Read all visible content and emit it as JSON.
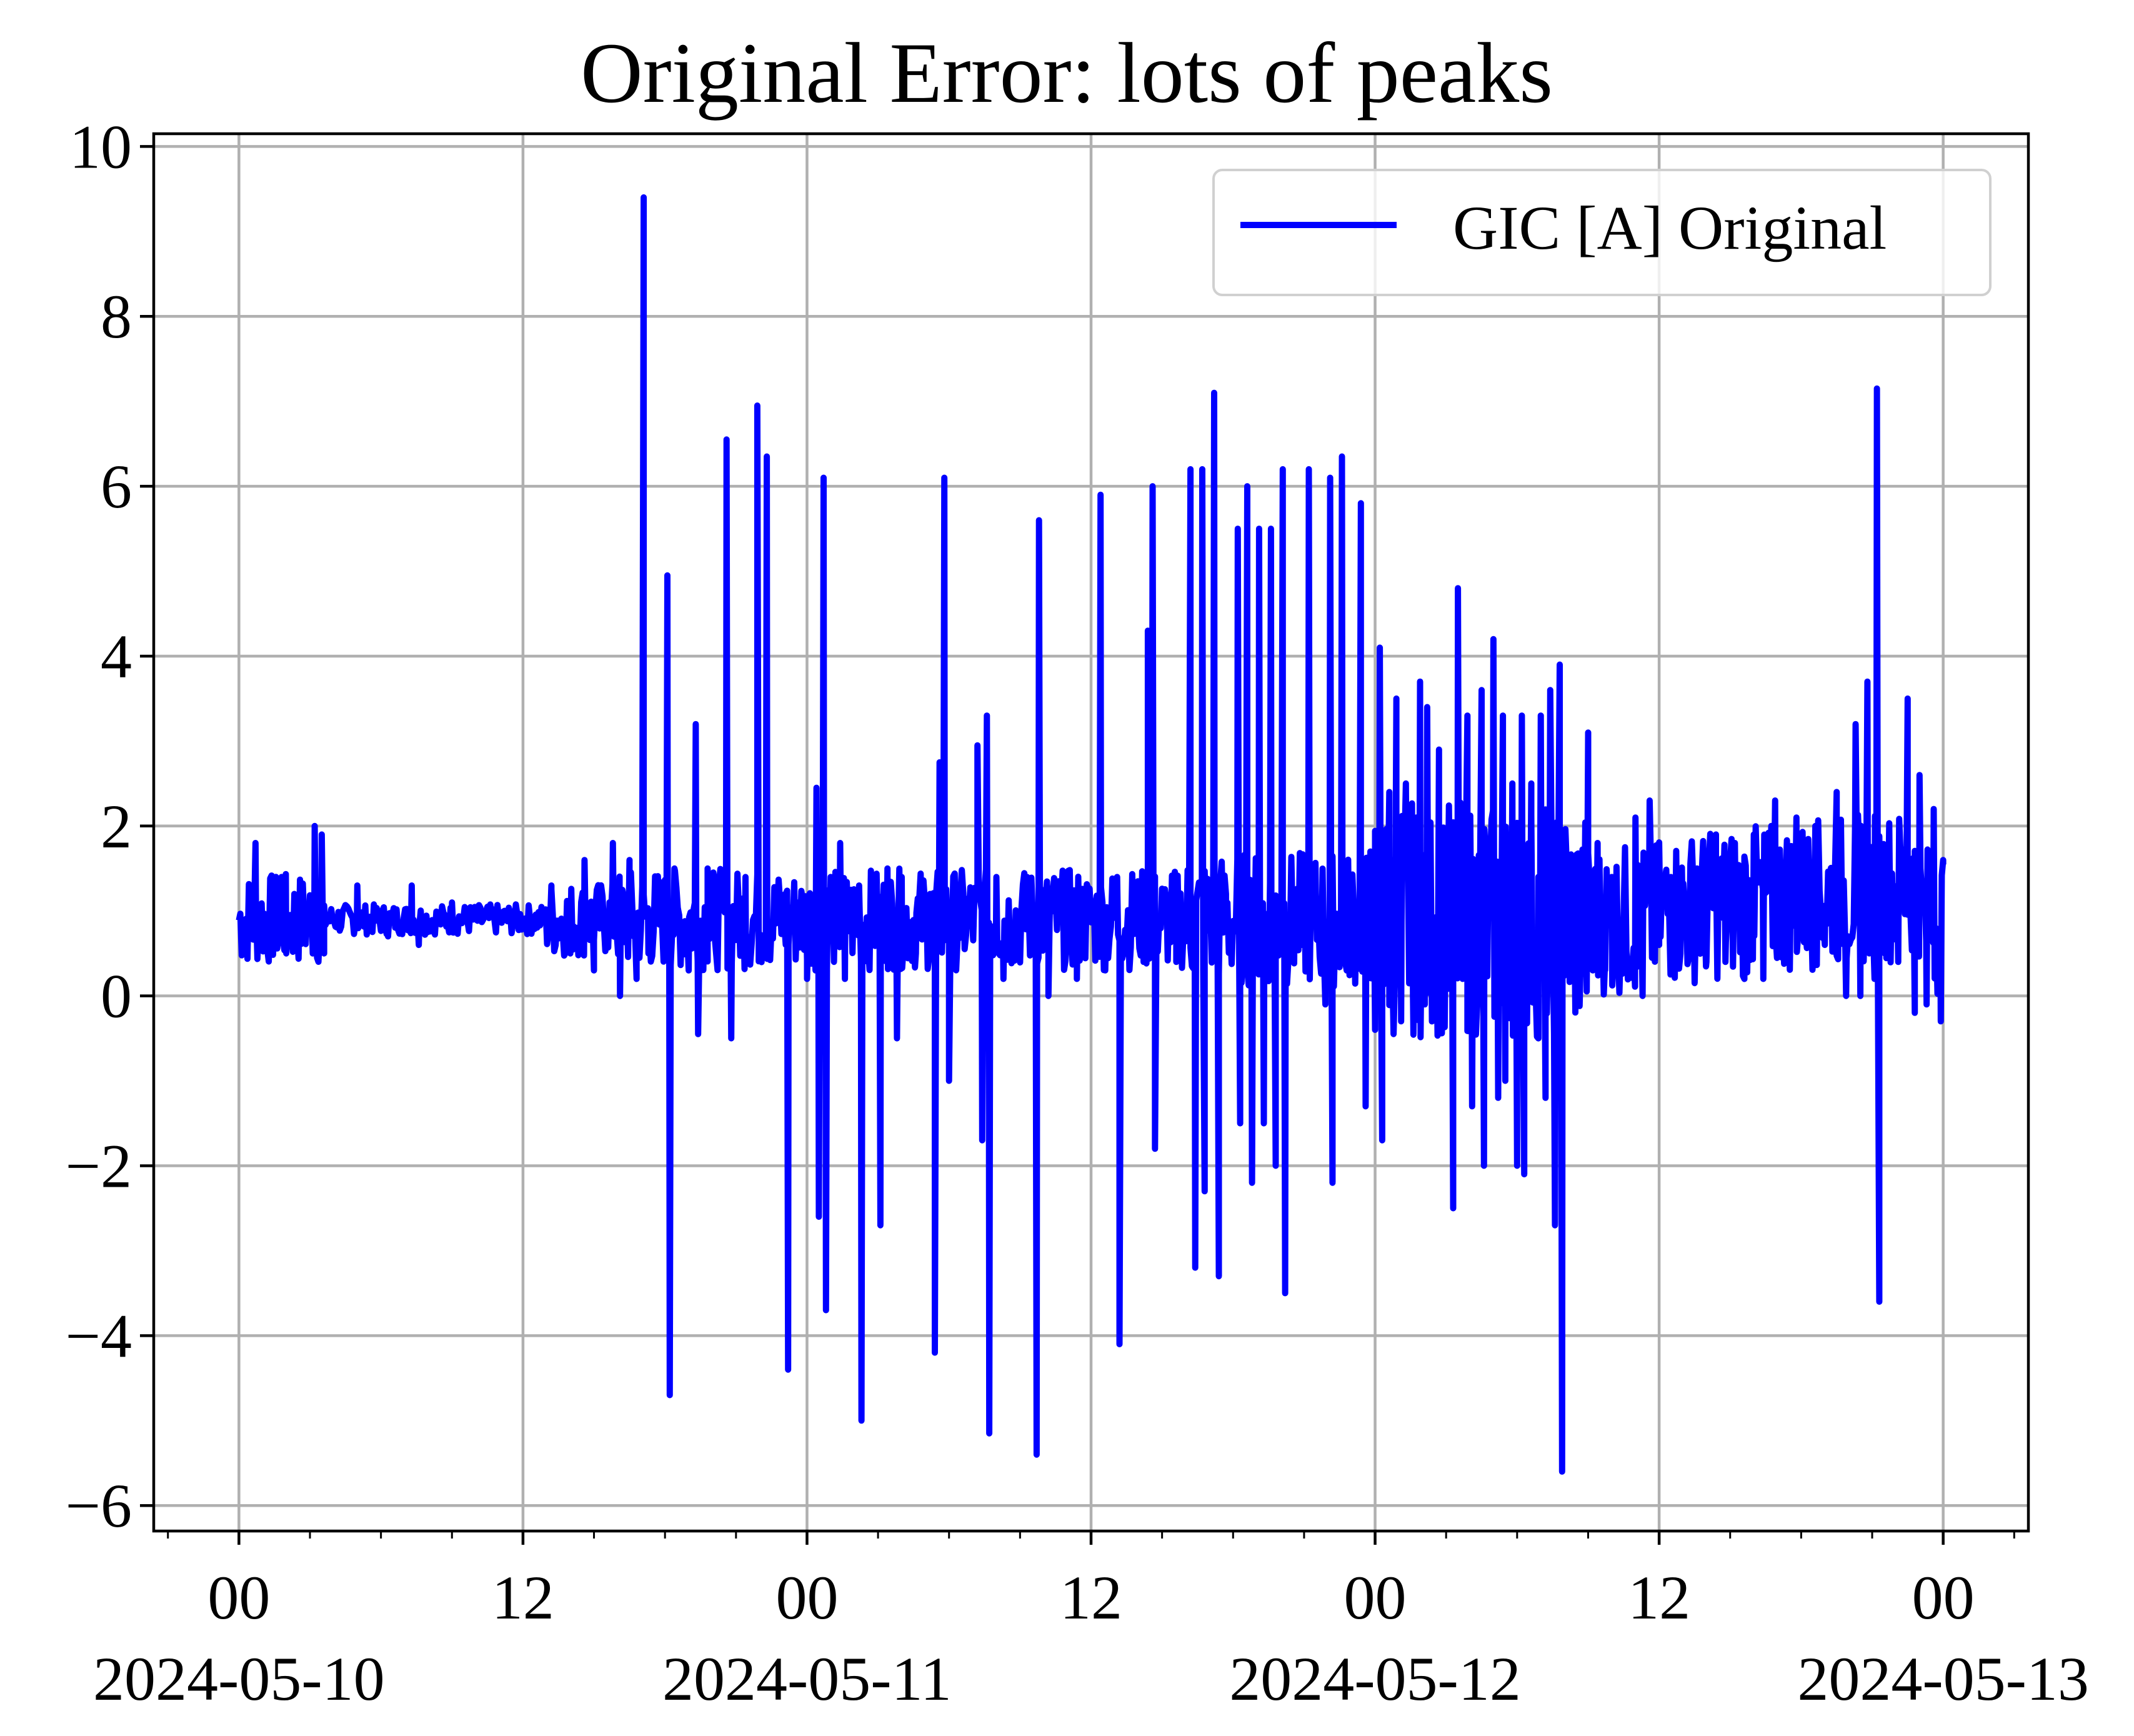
{
  "chart_data": {
    "type": "line",
    "title": "Original Error: lots of peaks",
    "xlabel": "",
    "ylabel": "",
    "x_unit": "hours since 2024-05-10 00:00",
    "xlim": [
      -3.6,
      75.6
    ],
    "ylim": [
      -6.3,
      10.15
    ],
    "grid": true,
    "legend_position": "top-right",
    "y_ticks": [
      {
        "value": -6,
        "label": "−6"
      },
      {
        "value": -4,
        "label": "−4"
      },
      {
        "value": -2,
        "label": "−2"
      },
      {
        "value": 0,
        "label": "0"
      },
      {
        "value": 2,
        "label": "2"
      },
      {
        "value": 4,
        "label": "4"
      },
      {
        "value": 6,
        "label": "6"
      },
      {
        "value": 8,
        "label": "8"
      },
      {
        "value": 10,
        "label": "10"
      }
    ],
    "x_ticks": [
      {
        "value": 0,
        "label": "00",
        "date": "2024-05-10"
      },
      {
        "value": 12,
        "label": "12",
        "date": ""
      },
      {
        "value": 24,
        "label": "00",
        "date": "2024-05-11"
      },
      {
        "value": 36,
        "label": "12",
        "date": ""
      },
      {
        "value": 48,
        "label": "00",
        "date": "2024-05-12"
      },
      {
        "value": 60,
        "label": "12",
        "date": ""
      },
      {
        "value": 72,
        "label": "00",
        "date": "2024-05-13"
      }
    ],
    "x_minor_ticks": [
      -3,
      3,
      6,
      9,
      15,
      18,
      21,
      27,
      30,
      33,
      39,
      42,
      45,
      51,
      54,
      57,
      63,
      66,
      69,
      75
    ],
    "series": [
      {
        "name": "GIC [A] Original",
        "color": "#0000ff",
        "peaks": [
          {
            "x": 0.7,
            "y": 1.8
          },
          {
            "x": 1.2,
            "y": 0.6
          },
          {
            "x": 1.8,
            "y": 1.4
          },
          {
            "x": 2.0,
            "y": 0.5
          },
          {
            "x": 3.2,
            "y": 2.0
          },
          {
            "x": 3.5,
            "y": 1.9
          },
          {
            "x": 3.6,
            "y": 0.5
          },
          {
            "x": 5.0,
            "y": 1.3
          },
          {
            "x": 6.3,
            "y": 0.7
          },
          {
            "x": 7.3,
            "y": 1.3
          },
          {
            "x": 7.6,
            "y": 0.6
          },
          {
            "x": 9.0,
            "y": 1.1
          },
          {
            "x": 13.2,
            "y": 1.3
          },
          {
            "x": 14.0,
            "y": 0.5
          },
          {
            "x": 14.6,
            "y": 1.6
          },
          {
            "x": 15.0,
            "y": 0.3
          },
          {
            "x": 15.8,
            "y": 1.8
          },
          {
            "x": 16.1,
            "y": 0.0
          },
          {
            "x": 16.5,
            "y": 1.6
          },
          {
            "x": 16.8,
            "y": 0.2
          },
          {
            "x": 17.1,
            "y": 9.4
          },
          {
            "x": 17.3,
            "y": 0.5
          },
          {
            "x": 18.1,
            "y": 4.95
          },
          {
            "x": 18.2,
            "y": -4.7
          },
          {
            "x": 18.4,
            "y": 1.5
          },
          {
            "x": 19.0,
            "y": 0.3
          },
          {
            "x": 19.3,
            "y": 3.2
          },
          {
            "x": 19.4,
            "y": -0.45
          },
          {
            "x": 19.8,
            "y": 1.5
          },
          {
            "x": 20.1,
            "y": 0.7
          },
          {
            "x": 20.6,
            "y": 6.55
          },
          {
            "x": 20.8,
            "y": -0.5
          },
          {
            "x": 21.4,
            "y": 1.4
          },
          {
            "x": 21.9,
            "y": 6.95
          },
          {
            "x": 22.1,
            "y": 0.6
          },
          {
            "x": 22.3,
            "y": 6.35
          },
          {
            "x": 22.5,
            "y": 0.7
          },
          {
            "x": 23.1,
            "y": 1.2
          },
          {
            "x": 23.2,
            "y": -4.4
          },
          {
            "x": 23.6,
            "y": 1.1
          },
          {
            "x": 24.0,
            "y": 0.2
          },
          {
            "x": 24.4,
            "y": 2.45
          },
          {
            "x": 24.5,
            "y": -2.6
          },
          {
            "x": 24.7,
            "y": 6.1
          },
          {
            "x": 24.8,
            "y": -3.7
          },
          {
            "x": 25.0,
            "y": 1.4
          },
          {
            "x": 25.4,
            "y": 1.8
          },
          {
            "x": 25.6,
            "y": 0.2
          },
          {
            "x": 26.2,
            "y": 1.3
          },
          {
            "x": 26.3,
            "y": -5.0
          },
          {
            "x": 26.8,
            "y": 1.1
          },
          {
            "x": 27.1,
            "y": -2.7
          },
          {
            "x": 27.4,
            "y": 1.5
          },
          {
            "x": 27.8,
            "y": -0.5
          },
          {
            "x": 28.0,
            "y": 1.4
          },
          {
            "x": 28.6,
            "y": 0.5
          },
          {
            "x": 29.2,
            "y": 1.2
          },
          {
            "x": 29.4,
            "y": -4.2
          },
          {
            "x": 29.6,
            "y": 2.75
          },
          {
            "x": 29.8,
            "y": 6.1
          },
          {
            "x": 30.0,
            "y": -1.0
          },
          {
            "x": 30.5,
            "y": 1.3
          },
          {
            "x": 31.2,
            "y": 2.95
          },
          {
            "x": 31.4,
            "y": -1.7
          },
          {
            "x": 31.6,
            "y": 3.3
          },
          {
            "x": 31.7,
            "y": -5.15
          },
          {
            "x": 32.0,
            "y": 1.4
          },
          {
            "x": 32.3,
            "y": 0.2
          },
          {
            "x": 33.3,
            "y": 1.4
          },
          {
            "x": 33.7,
            "y": -5.4
          },
          {
            "x": 33.8,
            "y": 5.6
          },
          {
            "x": 34.2,
            "y": 0.0
          },
          {
            "x": 35.0,
            "y": 1.3
          },
          {
            "x": 35.4,
            "y": 0.2
          },
          {
            "x": 36.2,
            "y": 1.1
          },
          {
            "x": 36.4,
            "y": 5.9
          },
          {
            "x": 36.6,
            "y": 0.3
          },
          {
            "x": 37.1,
            "y": 1.4
          },
          {
            "x": 37.2,
            "y": -4.1
          },
          {
            "x": 38.0,
            "y": 0.8
          },
          {
            "x": 38.4,
            "y": 4.3
          },
          {
            "x": 38.6,
            "y": 6.0
          },
          {
            "x": 38.7,
            "y": -1.8
          },
          {
            "x": 39.2,
            "y": 1.0
          },
          {
            "x": 39.6,
            "y": 0.4
          },
          {
            "x": 40.2,
            "y": 6.2
          },
          {
            "x": 40.4,
            "y": -3.2
          },
          {
            "x": 40.7,
            "y": 6.2
          },
          {
            "x": 40.8,
            "y": -2.3
          },
          {
            "x": 41.2,
            "y": 7.1
          },
          {
            "x": 41.4,
            "y": -3.3
          },
          {
            "x": 41.7,
            "y": 1.2
          },
          {
            "x": 42.2,
            "y": 5.5
          },
          {
            "x": 42.3,
            "y": -1.5
          },
          {
            "x": 42.6,
            "y": 6.0
          },
          {
            "x": 42.8,
            "y": -2.2
          },
          {
            "x": 43.1,
            "y": 5.5
          },
          {
            "x": 43.3,
            "y": -1.5
          },
          {
            "x": 43.6,
            "y": 5.5
          },
          {
            "x": 43.8,
            "y": -2.0
          },
          {
            "x": 44.1,
            "y": 6.2
          },
          {
            "x": 44.2,
            "y": -3.5
          },
          {
            "x": 44.6,
            "y": 1.1
          },
          {
            "x": 44.9,
            "y": 0.6
          },
          {
            "x": 45.2,
            "y": 6.2
          },
          {
            "x": 45.5,
            "y": 1.2
          },
          {
            "x": 45.9,
            "y": -0.1
          },
          {
            "x": 46.1,
            "y": 6.1
          },
          {
            "x": 46.2,
            "y": -2.2
          },
          {
            "x": 46.6,
            "y": 6.35
          },
          {
            "x": 46.8,
            "y": 0.3
          },
          {
            "x": 47.1,
            "y": 1.0
          },
          {
            "x": 47.4,
            "y": 5.8
          },
          {
            "x": 47.6,
            "y": -1.3
          },
          {
            "x": 47.8,
            "y": 1.7
          },
          {
            "x": 48.0,
            "y": -0.4
          },
          {
            "x": 48.2,
            "y": 4.1
          },
          {
            "x": 48.3,
            "y": -1.7
          },
          {
            "x": 48.6,
            "y": 2.4
          },
          {
            "x": 48.9,
            "y": 3.5
          },
          {
            "x": 49.1,
            "y": -0.3
          },
          {
            "x": 49.3,
            "y": 2.5
          },
          {
            "x": 49.6,
            "y": 0.0
          },
          {
            "x": 49.9,
            "y": 3.7
          },
          {
            "x": 50.1,
            "y": -0.1
          },
          {
            "x": 50.2,
            "y": 3.4
          },
          {
            "x": 50.4,
            "y": -0.3
          },
          {
            "x": 50.7,
            "y": 2.9
          },
          {
            "x": 50.9,
            "y": -0.3
          },
          {
            "x": 51.1,
            "y": 1.8
          },
          {
            "x": 51.3,
            "y": -2.5
          },
          {
            "x": 51.5,
            "y": 4.8
          },
          {
            "x": 51.7,
            "y": 0.2
          },
          {
            "x": 51.9,
            "y": 3.3
          },
          {
            "x": 52.1,
            "y": -1.3
          },
          {
            "x": 52.5,
            "y": 3.6
          },
          {
            "x": 52.6,
            "y": -2.0
          },
          {
            "x": 53.0,
            "y": 4.2
          },
          {
            "x": 53.2,
            "y": -1.2
          },
          {
            "x": 53.4,
            "y": 3.3
          },
          {
            "x": 53.5,
            "y": -1.0
          },
          {
            "x": 53.8,
            "y": 2.5
          },
          {
            "x": 54.0,
            "y": -2.0
          },
          {
            "x": 54.2,
            "y": 3.3
          },
          {
            "x": 54.3,
            "y": -2.1
          },
          {
            "x": 54.6,
            "y": 2.5
          },
          {
            "x": 54.9,
            "y": -0.5
          },
          {
            "x": 55.0,
            "y": 3.3
          },
          {
            "x": 55.2,
            "y": -1.2
          },
          {
            "x": 55.4,
            "y": 3.6
          },
          {
            "x": 55.6,
            "y": -2.7
          },
          {
            "x": 55.8,
            "y": 3.9
          },
          {
            "x": 55.9,
            "y": -5.6
          },
          {
            "x": 56.2,
            "y": 1.3
          },
          {
            "x": 56.6,
            "y": 0.4
          },
          {
            "x": 57.0,
            "y": 3.1
          },
          {
            "x": 57.2,
            "y": 0.3
          },
          {
            "x": 57.4,
            "y": 1.8
          },
          {
            "x": 57.7,
            "y": 0.3
          },
          {
            "x": 58.0,
            "y": 1.4
          },
          {
            "x": 58.4,
            "y": 0.5
          },
          {
            "x": 59.0,
            "y": 2.1
          },
          {
            "x": 59.3,
            "y": 0.0
          },
          {
            "x": 59.6,
            "y": 2.3
          },
          {
            "x": 60.0,
            "y": 0.6
          },
          {
            "x": 60.5,
            "y": 1.4
          },
          {
            "x": 61.0,
            "y": 0.8
          },
          {
            "x": 61.6,
            "y": 1.5
          },
          {
            "x": 62.0,
            "y": 0.4
          },
          {
            "x": 62.4,
            "y": 1.9
          },
          {
            "x": 62.8,
            "y": 0.4
          },
          {
            "x": 63.2,
            "y": 1.8
          },
          {
            "x": 63.6,
            "y": 0.2
          },
          {
            "x": 64.0,
            "y": 1.9
          },
          {
            "x": 64.4,
            "y": 0.2
          },
          {
            "x": 64.9,
            "y": 2.3
          },
          {
            "x": 65.3,
            "y": 0.6
          },
          {
            "x": 65.8,
            "y": 2.1
          },
          {
            "x": 66.2,
            "y": 0.7
          },
          {
            "x": 66.6,
            "y": 2.0
          },
          {
            "x": 67.0,
            "y": 0.6
          },
          {
            "x": 67.5,
            "y": 2.4
          },
          {
            "x": 67.9,
            "y": 0.0
          },
          {
            "x": 68.3,
            "y": 3.2
          },
          {
            "x": 68.5,
            "y": 0.0
          },
          {
            "x": 68.8,
            "y": 3.7
          },
          {
            "x": 69.1,
            "y": 0.2
          },
          {
            "x": 69.2,
            "y": 7.15
          },
          {
            "x": 69.3,
            "y": -3.6
          },
          {
            "x": 69.6,
            "y": 1.2
          },
          {
            "x": 70.1,
            "y": 0.4
          },
          {
            "x": 70.5,
            "y": 3.5
          },
          {
            "x": 70.8,
            "y": -0.2
          },
          {
            "x": 71.0,
            "y": 2.6
          },
          {
            "x": 71.3,
            "y": -0.1
          },
          {
            "x": 71.6,
            "y": 2.2
          },
          {
            "x": 71.9,
            "y": -0.3
          },
          {
            "x": 72.0,
            "y": 1.6
          }
        ]
      }
    ]
  }
}
